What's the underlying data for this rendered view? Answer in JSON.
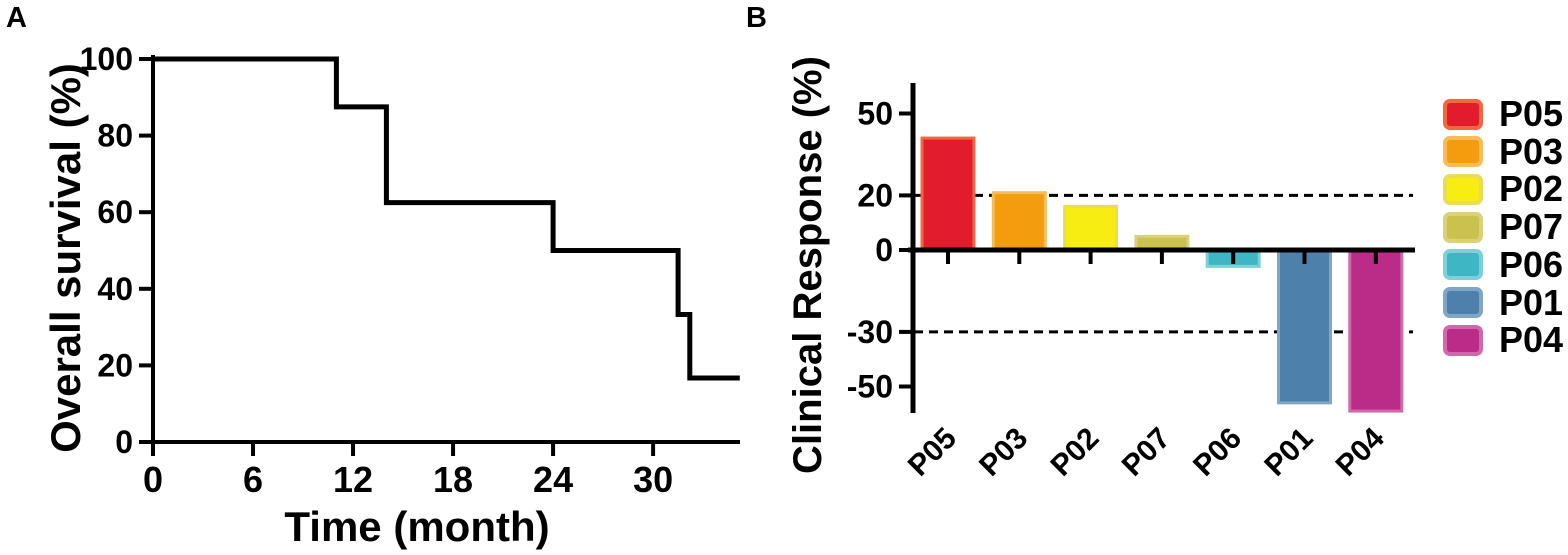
{
  "figure": {
    "panel_a_letter": "A",
    "panel_b_letter": "B"
  },
  "chart_data": [
    {
      "panel": "A",
      "type": "line",
      "subtype": "kaplan_meier_step_curve",
      "title": "",
      "xlabel": "Time (month)",
      "ylabel": "Overall survival (%)",
      "xlim": [
        0,
        35.2
      ],
      "ylim": [
        0,
        100
      ],
      "xticks": [
        0,
        6,
        12,
        18,
        24,
        30
      ],
      "yticks": [
        0,
        20,
        40,
        60,
        80,
        100
      ],
      "grid": false,
      "line_color": "#000000",
      "series": [
        {
          "name": "Overall survival",
          "step_points": [
            [
              0,
              100
            ],
            [
              11,
              100
            ],
            [
              11,
              87.5
            ],
            [
              14,
              87.5
            ],
            [
              14,
              62.5
            ],
            [
              24,
              62.5
            ],
            [
              24,
              50
            ],
            [
              31.5,
              50
            ],
            [
              31.5,
              33.3
            ],
            [
              32.2,
              33.3
            ],
            [
              32.2,
              16.7
            ],
            [
              35.2,
              16.7
            ]
          ]
        }
      ]
    },
    {
      "panel": "B",
      "type": "bar",
      "subtype": "waterfall",
      "title": "",
      "xlabel": "",
      "ylabel": "Clinical Response (%)",
      "ylim": [
        -62,
        62
      ],
      "yticks": [
        50,
        20,
        0,
        -30,
        -50
      ],
      "reference_lines": [
        20,
        -30
      ],
      "grid": false,
      "categories": [
        "P05",
        "P03",
        "P02",
        "P07",
        "P06",
        "P01",
        "P04"
      ],
      "values": [
        41,
        21,
        16,
        5,
        -6,
        -56,
        -59
      ],
      "bar_colors": [
        "#e31c2d",
        "#f39c0e",
        "#f8ed13",
        "#cac14f",
        "#3fb6c4",
        "#4d80ab",
        "#ba2c88"
      ],
      "bar_border_colors": [
        "#f0683f",
        "#f7bc55",
        "#eadd55",
        "#d9d27b",
        "#7dd0da",
        "#7fa6c4",
        "#d168ab"
      ],
      "axis_color": "#000000",
      "legend": {
        "position": "right",
        "labels": [
          "P05",
          "P03",
          "P02",
          "P07",
          "P06",
          "P01",
          "P04"
        ]
      }
    }
  ]
}
